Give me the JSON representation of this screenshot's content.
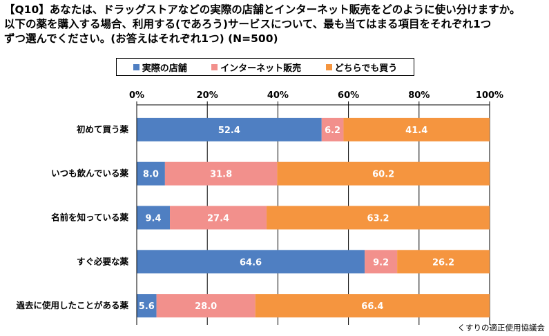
{
  "title": "【Q10】あなたは、ドラッグストアなどの実際の店舗とインターネット販売をどのように使い分けますか。\n以下の薬を購入する場合、利用する(であろう)サービスについて、最も当てはまる項目をそれぞれ1つ\nずつ選んでください。(お答えはそれぞれ1つ) (N=500)",
  "source": "くすりの適正使用協議会",
  "colors": {
    "store": "#4f7fc2",
    "internet": "#f2908c",
    "either": "#f5953f",
    "grid": "#000000"
  },
  "chart_data": {
    "type": "bar",
    "orientation": "horizontal",
    "stacked": true,
    "percent_stacked": true,
    "categories": [
      "初めて買う薬",
      "いつも飲んでいる薬",
      "名前を知っている薬",
      "すぐ必要な薬",
      "過去に使用したことがある薬"
    ],
    "series": [
      {
        "name": "実際の店舗",
        "values": [
          52.4,
          8.0,
          9.4,
          64.6,
          5.6
        ],
        "labels": [
          "52.4",
          "8.0",
          "9.4",
          "64.6",
          "5.6"
        ],
        "color": "#4f7fc2",
        "label_color": "#ffffff"
      },
      {
        "name": "インターネット販売",
        "values": [
          6.2,
          31.8,
          27.4,
          9.2,
          28.0
        ],
        "labels": [
          "6.2",
          "31.8",
          "27.4",
          "9.2",
          "28.0"
        ],
        "color": "#f2908c",
        "label_color": "#ffffff"
      },
      {
        "name": "どちらでも買う",
        "values": [
          41.4,
          60.2,
          63.2,
          26.2,
          66.4
        ],
        "labels": [
          "41.4",
          "60.2",
          "63.2",
          "26.2",
          "66.4"
        ],
        "color": "#f5953f",
        "label_color": "#ffffff"
      }
    ],
    "xlim": [
      0,
      100
    ],
    "xticks": [
      "0%",
      "20%",
      "40%",
      "60%",
      "80%",
      "100%"
    ],
    "grid": true,
    "legend_position": "top"
  }
}
